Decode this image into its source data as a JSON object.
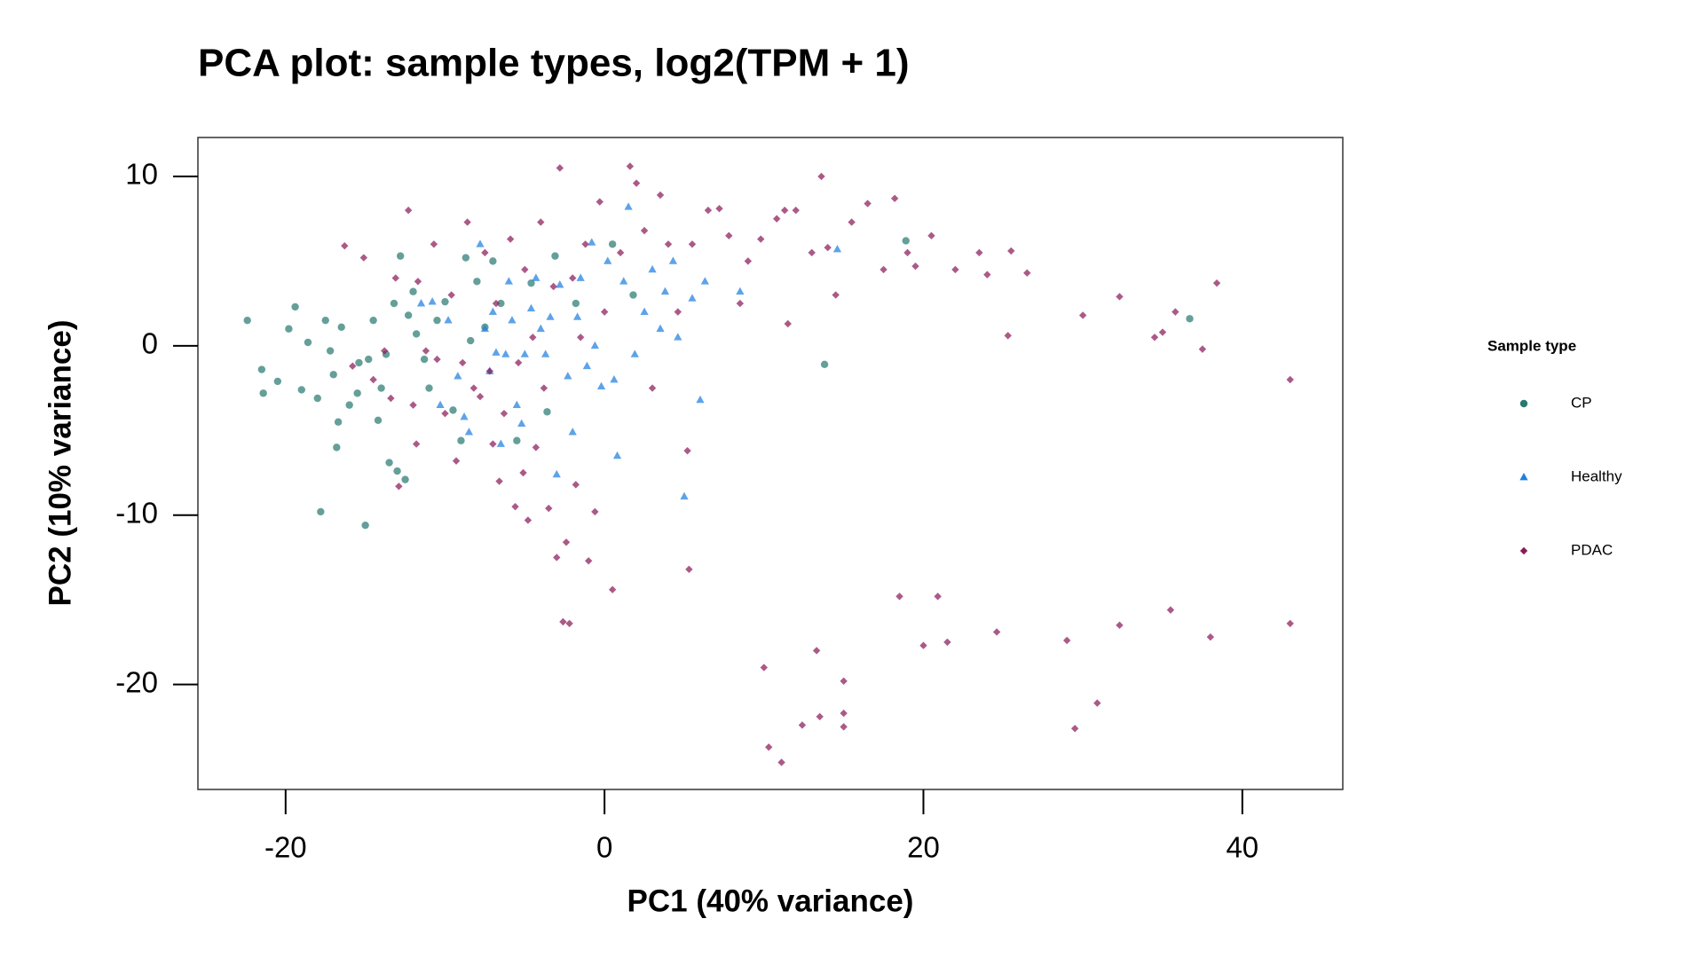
{
  "chart_data": {
    "type": "scatter",
    "title": "PCA plot: sample types, log2(TPM + 1)",
    "x_label": "PC1 (40% variance)",
    "y_label": "PC2 (10% variance)",
    "legend_title": "Sample type",
    "xlim": [
      -25.5,
      46.3
    ],
    "ylim": [
      -26.2,
      12.3
    ],
    "xticks": [
      -20,
      0,
      20,
      40
    ],
    "yticks": [
      -20,
      -10,
      0,
      10
    ],
    "series": [
      {
        "name": "CP",
        "color": "#2a7a72",
        "marker": "circle",
        "x": [
          -22.4,
          -21.5,
          -21.4,
          -20.5,
          -19.8,
          -19.4,
          -19.0,
          -18.6,
          -18.0,
          -17.8,
          -17.5,
          -17.2,
          -17.0,
          -16.8,
          -16.7,
          -16.5,
          -16.0,
          -15.5,
          -15.4,
          -15.0,
          -14.8,
          -14.5,
          -14.2,
          -14.0,
          -13.7,
          -13.5,
          -13.2,
          -13.0,
          -12.8,
          -12.5,
          -12.3,
          -12.0,
          -11.8,
          -11.3,
          -11.0,
          -10.5,
          -10.0,
          -9.5,
          -9.0,
          -8.7,
          -8.4,
          -8.0,
          -7.5,
          -7.0,
          -6.5,
          -5.5,
          -4.6,
          -3.6,
          -3.1,
          -1.8,
          0.5,
          1.8,
          13.8,
          18.9,
          36.7
        ],
        "values": [
          1.5,
          -1.4,
          -2.8,
          -2.1,
          1.0,
          2.3,
          -2.6,
          0.2,
          -3.1,
          -9.8,
          1.5,
          -0.3,
          -1.7,
          -6.0,
          -4.5,
          1.1,
          -3.5,
          -2.8,
          -1.0,
          -10.6,
          -0.8,
          1.5,
          -4.4,
          -2.5,
          -0.5,
          -6.9,
          2.5,
          -7.4,
          5.3,
          -7.9,
          1.8,
          3.2,
          0.7,
          -0.8,
          -2.5,
          1.5,
          2.6,
          -3.8,
          -5.6,
          5.2,
          0.3,
          3.8,
          1.1,
          5.0,
          2.5,
          -5.6,
          3.7,
          -3.9,
          5.3,
          2.5,
          6.0,
          3.0,
          -1.1,
          6.2,
          1.6
        ]
      },
      {
        "name": "Healthy",
        "color": "#1f7fe0",
        "marker": "triangle",
        "x": [
          -11.5,
          -10.8,
          -10.3,
          -9.8,
          -9.2,
          -8.8,
          -8.5,
          -7.8,
          -7.5,
          -7.2,
          -7.0,
          -6.8,
          -6.5,
          -6.2,
          -6.0,
          -5.8,
          -5.5,
          -5.2,
          -5.0,
          -4.6,
          -4.3,
          -4.0,
          -3.7,
          -3.4,
          -3.0,
          -2.8,
          -2.3,
          -2.0,
          -1.7,
          -1.5,
          -1.1,
          -0.8,
          -0.6,
          -0.2,
          0.2,
          0.6,
          0.8,
          1.2,
          1.5,
          1.9,
          2.5,
          3.0,
          3.5,
          3.8,
          4.3,
          4.6,
          5.0,
          5.5,
          6.0,
          6.3,
          8.5,
          14.6
        ],
        "values": [
          2.5,
          2.6,
          -3.5,
          1.5,
          -1.8,
          -4.2,
          -5.1,
          6.0,
          1.0,
          -1.5,
          2.0,
          -0.4,
          -5.8,
          -0.5,
          3.8,
          1.5,
          -3.5,
          -4.6,
          -0.5,
          2.2,
          4.0,
          1.0,
          -0.5,
          1.7,
          -7.6,
          3.6,
          -1.8,
          -5.1,
          1.7,
          4.0,
          -1.2,
          6.1,
          0.0,
          -2.4,
          5.0,
          -2.0,
          -6.5,
          3.8,
          8.2,
          -0.5,
          2.0,
          4.5,
          1.0,
          3.2,
          5.0,
          0.5,
          -8.9,
          2.8,
          -3.2,
          3.8,
          3.2,
          5.7
        ]
      },
      {
        "name": "PDAC",
        "color": "#8b1a5a",
        "marker": "diamond",
        "x": [
          -16.3,
          -15.8,
          -15.1,
          -14.5,
          -13.8,
          -13.4,
          -13.1,
          -12.9,
          -12.3,
          -12.0,
          -11.7,
          -11.2,
          -11.8,
          -10.7,
          -10.5,
          -10.0,
          -9.6,
          -9.3,
          -8.9,
          -8.6,
          -8.2,
          -7.8,
          -7.5,
          -7.2,
          -7.0,
          -6.8,
          -6.6,
          -6.3,
          -5.9,
          -5.6,
          -5.4,
          -5.1,
          -5.0,
          -4.8,
          -4.5,
          -4.3,
          -4.0,
          -3.8,
          -3.5,
          -3.2,
          -3.0,
          -2.8,
          -2.6,
          -2.4,
          -2.2,
          -2.0,
          -1.8,
          -1.5,
          -1.2,
          -1.0,
          -0.6,
          -0.3,
          0.0,
          0.5,
          1.0,
          1.6,
          2.0,
          2.5,
          3.0,
          3.5,
          4.0,
          4.6,
          5.2,
          5.3,
          5.5,
          6.5,
          7.2,
          7.8,
          8.5,
          9.0,
          9.8,
          10.0,
          10.3,
          10.8,
          11.1,
          11.3,
          11.5,
          12.0,
          12.4,
          13.0,
          13.3,
          13.5,
          13.6,
          14.0,
          14.5,
          15.0,
          15.0,
          15.0,
          15.5,
          16.5,
          17.5,
          18.2,
          18.5,
          19.0,
          19.5,
          20.0,
          20.5,
          20.9,
          21.5,
          22.0,
          23.5,
          24.0,
          24.6,
          25.5,
          26.5,
          29.0,
          29.5,
          30.0,
          30.9,
          32.3,
          34.5,
          35.0,
          35.5,
          35.8,
          37.5,
          38.0,
          38.4,
          43.0,
          43.0,
          32.3,
          25.3
        ],
        "values": [
          5.9,
          -1.2,
          5.2,
          -2.0,
          -0.3,
          -3.1,
          4.0,
          -8.3,
          8.0,
          -3.5,
          3.8,
          -0.3,
          -5.8,
          6.0,
          -0.8,
          -4.0,
          3.0,
          -6.8,
          -1.0,
          7.3,
          -2.5,
          -3.0,
          5.5,
          -1.5,
          -5.8,
          2.5,
          -8.0,
          -4.0,
          6.3,
          -9.5,
          -1.0,
          -7.5,
          4.5,
          -10.3,
          0.5,
          -6.0,
          7.3,
          -2.5,
          -9.6,
          3.5,
          -12.5,
          10.5,
          -16.3,
          -11.6,
          -16.4,
          4.0,
          -8.2,
          0.5,
          6.0,
          -12.7,
          -9.8,
          8.5,
          2.0,
          -14.4,
          5.5,
          10.6,
          9.6,
          6.8,
          -2.5,
          8.9,
          6.0,
          2.0,
          -6.2,
          -13.2,
          6.0,
          8.0,
          8.1,
          6.5,
          2.5,
          5.0,
          6.3,
          -19.0,
          -23.7,
          7.5,
          -24.6,
          8.0,
          1.3,
          8.0,
          -22.4,
          5.5,
          -18.0,
          -21.9,
          10.0,
          5.8,
          3.0,
          -19.8,
          -21.7,
          -22.5,
          7.3,
          8.4,
          4.5,
          8.7,
          -14.8,
          5.5,
          4.7,
          -17.7,
          6.5,
          -14.8,
          -17.5,
          4.5,
          5.5,
          4.2,
          -16.9,
          5.6,
          4.3,
          -17.4,
          -22.6,
          1.8,
          -21.1,
          -16.5,
          0.5,
          0.8,
          -15.6,
          2.0,
          -0.2,
          -17.2,
          3.7,
          -2.0,
          -16.4,
          2.9,
          0.6
        ]
      }
    ]
  }
}
